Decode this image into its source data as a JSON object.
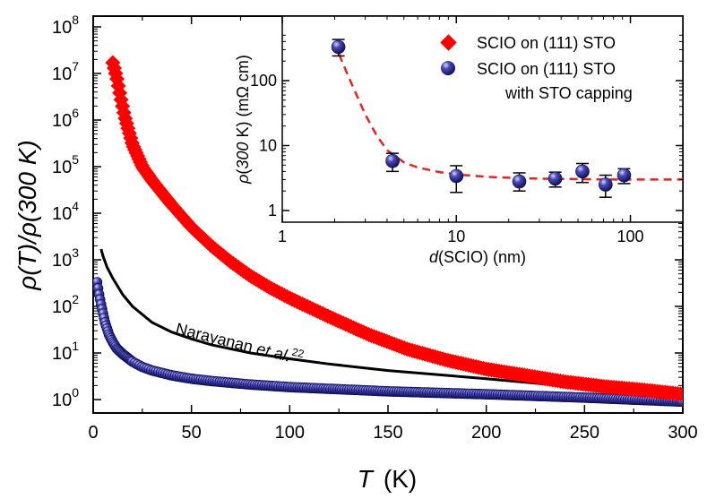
{
  "chart_data": [
    {
      "type": "scatter",
      "xlabel": "T",
      "xunit": "(K)",
      "ylabel": "ρ(T)/ρ(300 K)",
      "xlim": [
        0,
        300
      ],
      "ylim": [
        0.6,
        100000000.0
      ],
      "yscale": "log",
      "x_ticks": [
        "0",
        "50",
        "100",
        "150",
        "200",
        "250",
        "300"
      ],
      "y_ticks": [
        {
          "base": "10",
          "exp": "0"
        },
        {
          "base": "10",
          "exp": "1"
        },
        {
          "base": "10",
          "exp": "2"
        },
        {
          "base": "10",
          "exp": "3"
        },
        {
          "base": "10",
          "exp": "4"
        },
        {
          "base": "10",
          "exp": "5"
        },
        {
          "base": "10",
          "exp": "6"
        },
        {
          "base": "10",
          "exp": "7"
        },
        {
          "base": "10",
          "exp": "8"
        }
      ],
      "annotation": {
        "text": "Narayanan ",
        "italic": "et al.",
        "sup": "22"
      },
      "series": [
        {
          "name": "SCIO on (111) STO",
          "style": "diamond",
          "color": "#ff0000",
          "x": [
            10,
            12,
            14,
            16,
            18,
            20,
            25,
            30,
            40,
            50,
            60,
            70,
            80,
            90,
            100,
            120,
            140,
            160,
            180,
            200,
            220,
            240,
            260,
            280,
            300
          ],
          "y": [
            17000000.0,
            8000000.0,
            3000000.0,
            1200000.0,
            600000.0,
            300000.0,
            100000.0,
            50000.0,
            15000.0,
            5000,
            2000,
            900,
            450,
            250,
            150,
            60,
            25,
            12,
            7,
            4.5,
            3.3,
            2.4,
            1.9,
            1.6,
            1.3
          ]
        },
        {
          "name": "SCIO on (111) STO with STO capping",
          "style": "sphere",
          "color": "#1c1c88",
          "x": [
            2,
            3,
            4,
            5,
            6,
            8,
            10,
            12,
            15,
            20,
            25,
            30,
            40,
            50,
            60,
            80,
            100,
            120,
            150,
            200,
            250,
            300
          ],
          "y": [
            330,
            180,
            110,
            70,
            45,
            25,
            17,
            12.5,
            9.5,
            6.5,
            5.0,
            4.2,
            3.3,
            2.8,
            2.5,
            2.1,
            1.85,
            1.7,
            1.5,
            1.3,
            1.1,
            0.9
          ]
        },
        {
          "name": "Narayanan et al.",
          "style": "line",
          "color": "#000000",
          "x": [
            4,
            5,
            7,
            10,
            15,
            20,
            30,
            40,
            50,
            60,
            80,
            100,
            120,
            150,
            200,
            250,
            300
          ],
          "y": [
            1700,
            1200,
            700,
            400,
            180,
            100,
            45,
            28,
            20,
            15,
            10,
            7.5,
            5.8,
            4.2,
            2.8,
            1.8,
            1.1
          ]
        }
      ]
    },
    {
      "type": "scatter",
      "role": "inset",
      "xlabel": "d(SCIO) (nm)",
      "ylabel": "ρ(300 K) (mΩ cm)",
      "xscale": "log",
      "yscale": "log",
      "xlim": [
        1,
        200
      ],
      "ylim": [
        1,
        550
      ],
      "x_ticks": [
        "1",
        "10",
        "100"
      ],
      "y_ticks": [
        "1",
        "10",
        "100"
      ],
      "legend": {
        "position": "top-right",
        "entries": [
          {
            "label": "SCIO on (111) STO",
            "marker": "diamond",
            "color": "#ff0000"
          },
          {
            "label": "SCIO on (111) STO",
            "label2": "with STO capping",
            "marker": "sphere",
            "color": "#1c1c88"
          }
        ]
      },
      "series": [
        {
          "name": "SCIO on (111) STO with STO capping",
          "x": [
            2.1,
            4.3,
            10,
            23,
            37,
            53,
            72,
            92
          ],
          "y": [
            330,
            5.8,
            3.4,
            2.8,
            3.1,
            4.0,
            2.5,
            3.5
          ],
          "err_low": [
            90,
            1.8,
            1.5,
            0.8,
            0.8,
            1.3,
            0.9,
            0.9
          ],
          "err_high": [
            100,
            1.8,
            1.5,
            1.0,
            0.8,
            1.3,
            1.0,
            0.9
          ]
        },
        {
          "name": "fit",
          "style": "dashed",
          "color": "#e8231e",
          "x": [
            2.0,
            2.2,
            2.5,
            3,
            3.5,
            4,
            5,
            6,
            8,
            10,
            15,
            20,
            30,
            50,
            70,
            100,
            150,
            200
          ],
          "y": [
            400,
            200,
            90,
            30,
            14,
            8.5,
            5.5,
            4.6,
            3.9,
            3.6,
            3.3,
            3.2,
            3.1,
            3.05,
            3.0,
            3.0,
            3.0,
            3.0
          ]
        }
      ]
    }
  ]
}
